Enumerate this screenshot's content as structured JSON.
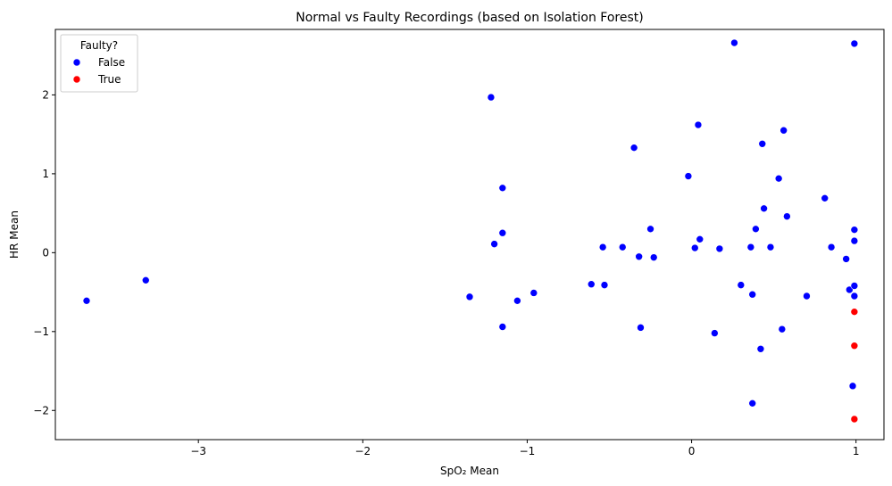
{
  "chart_data": {
    "type": "scatter",
    "title": "Normal vs Faulty Recordings (based on Isolation Forest)",
    "xlabel": "SpO₂ Mean",
    "ylabel": "HR Mean",
    "xlim": [
      -3.87,
      1.17
    ],
    "ylim": [
      -2.37,
      2.83
    ],
    "xticks": [
      -3,
      -2,
      -1,
      0,
      1
    ],
    "yticks": [
      -2,
      -1,
      0,
      1,
      2
    ],
    "xtick_labels": [
      "−3",
      "−2",
      "−1",
      "0",
      "1"
    ],
    "ytick_labels": [
      "−2",
      "−1",
      "0",
      "1",
      "2"
    ],
    "grid": false,
    "legend": {
      "title": "Faulty?",
      "position": "top-left"
    },
    "series": [
      {
        "name": "False",
        "color": "#0000ff",
        "points": [
          [
            -3.68,
            -0.61
          ],
          [
            -3.32,
            -0.35
          ],
          [
            -1.35,
            -0.56
          ],
          [
            -1.22,
            1.97
          ],
          [
            -1.2,
            0.11
          ],
          [
            -1.15,
            0.82
          ],
          [
            -1.15,
            0.25
          ],
          [
            -1.15,
            -0.94
          ],
          [
            -1.06,
            -0.61
          ],
          [
            -0.96,
            -0.51
          ],
          [
            -0.61,
            -0.4
          ],
          [
            -0.54,
            0.07
          ],
          [
            -0.53,
            -0.41
          ],
          [
            -0.42,
            0.07
          ],
          [
            -0.35,
            1.33
          ],
          [
            -0.32,
            -0.05
          ],
          [
            -0.31,
            -0.95
          ],
          [
            -0.25,
            0.3
          ],
          [
            -0.23,
            -0.06
          ],
          [
            -0.02,
            0.97
          ],
          [
            0.02,
            0.06
          ],
          [
            0.04,
            1.62
          ],
          [
            0.05,
            0.17
          ],
          [
            0.14,
            -1.02
          ],
          [
            0.17,
            0.05
          ],
          [
            0.26,
            2.66
          ],
          [
            0.3,
            -0.41
          ],
          [
            0.36,
            0.07
          ],
          [
            0.37,
            -0.53
          ],
          [
            0.37,
            -1.91
          ],
          [
            0.39,
            0.3
          ],
          [
            0.42,
            -1.22
          ],
          [
            0.43,
            1.38
          ],
          [
            0.44,
            0.56
          ],
          [
            0.48,
            0.07
          ],
          [
            0.53,
            0.94
          ],
          [
            0.55,
            -0.97
          ],
          [
            0.56,
            1.55
          ],
          [
            0.58,
            0.46
          ],
          [
            0.7,
            -0.55
          ],
          [
            0.81,
            0.69
          ],
          [
            0.85,
            0.07
          ],
          [
            0.94,
            -0.08
          ],
          [
            0.96,
            -0.47
          ],
          [
            0.99,
            2.65
          ],
          [
            0.99,
            0.29
          ],
          [
            0.99,
            0.15
          ],
          [
            0.99,
            -0.42
          ],
          [
            0.99,
            -0.55
          ],
          [
            0.98,
            -1.69
          ]
        ]
      },
      {
        "name": "True",
        "color": "#ff0000",
        "points": [
          [
            0.99,
            -0.75
          ],
          [
            0.99,
            -1.18
          ],
          [
            0.99,
            -2.11
          ]
        ]
      }
    ]
  }
}
